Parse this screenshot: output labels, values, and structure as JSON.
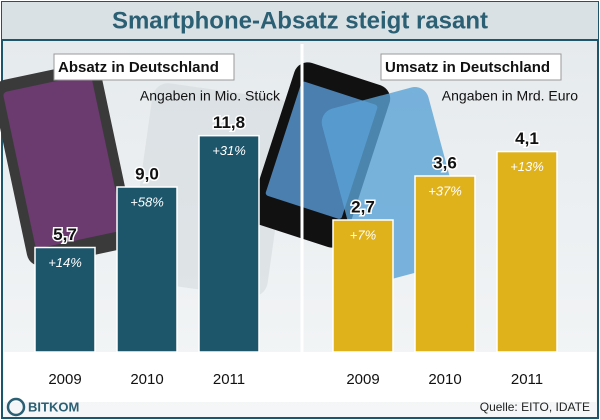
{
  "title": "Smartphone-Absatz steigt rasant",
  "chart_data": [
    {
      "type": "bar",
      "title": "Absatz in Deutschland",
      "subtitle": "Angaben in Mio. Stück",
      "categories": [
        "2009",
        "2010",
        "2011"
      ],
      "values": [
        5.7,
        9.0,
        11.8
      ],
      "value_labels": [
        "5,7",
        "9,0",
        "11,8"
      ],
      "annotations": [
        "+14%",
        "+58%",
        "+31%"
      ],
      "color": "#1d566a",
      "ylim": [
        0,
        12
      ]
    },
    {
      "type": "bar",
      "title": "Umsatz in Deutschland",
      "subtitle": "Angaben in Mrd. Euro",
      "categories": [
        "2009",
        "2010",
        "2011"
      ],
      "values": [
        2.7,
        3.6,
        4.1
      ],
      "value_labels": [
        "2,7",
        "3,6",
        "4,1"
      ],
      "annotations": [
        "+7%",
        "+37%",
        "+13%"
      ],
      "color": "#dfb21c",
      "ylim": [
        0,
        4.5
      ]
    }
  ],
  "logo": "BITKOM",
  "source": "Quelle: EITO, IDATE"
}
